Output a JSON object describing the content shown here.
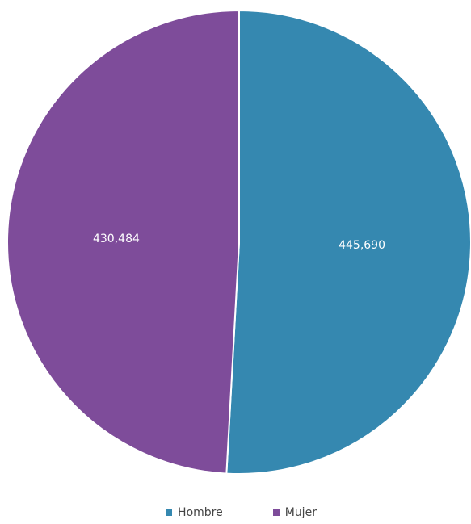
{
  "chart_data": {
    "type": "pie",
    "title": "",
    "slices": [
      {
        "name": "Hombre",
        "value": 445690,
        "label": "445,690",
        "color": "#3588b0"
      },
      {
        "name": "Mujer",
        "value": 430484,
        "label": "430,484",
        "color": "#7e4c9a"
      }
    ],
    "legend_position": "bottom"
  },
  "legend": {
    "items": [
      {
        "label": "Hombre",
        "color": "#3588b0"
      },
      {
        "label": "Mujer",
        "color": "#7e4c9a"
      }
    ]
  }
}
